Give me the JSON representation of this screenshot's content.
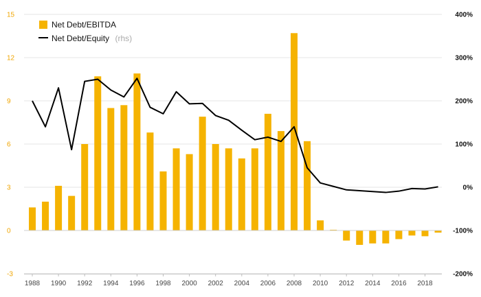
{
  "chart_data": {
    "type": "bar",
    "x": [
      1988,
      1989,
      1990,
      1991,
      1992,
      1993,
      1994,
      1995,
      1996,
      1997,
      1998,
      1999,
      2000,
      2001,
      2002,
      2003,
      2004,
      2005,
      2006,
      2007,
      2008,
      2009,
      2010,
      2011,
      2012,
      2013,
      2014,
      2015,
      2016,
      2017,
      2018,
      2019
    ],
    "series": [
      {
        "name": "Net Debt/EBITDA",
        "type": "bar",
        "axis": "left",
        "color": "#f5b301",
        "values": [
          1.6,
          2.0,
          3.1,
          2.4,
          6.0,
          10.7,
          8.5,
          8.7,
          10.9,
          6.8,
          4.1,
          5.7,
          5.3,
          7.9,
          6.0,
          5.7,
          5.0,
          5.7,
          8.1,
          6.9,
          13.7,
          6.2,
          0.7,
          0.05,
          -0.7,
          -1.0,
          -0.9,
          -0.9,
          -0.6,
          -0.35,
          -0.4,
          -0.15
        ]
      },
      {
        "name": "Net Debt/Equity",
        "legend_note": "(rhs)",
        "type": "line",
        "axis": "right",
        "color": "#000000",
        "values": [
          200,
          140,
          230,
          87,
          245,
          250,
          225,
          209,
          252,
          185,
          170,
          221,
          193,
          194,
          166,
          155,
          132,
          110,
          116,
          106,
          140,
          45,
          10,
          2,
          -6,
          -8,
          -10,
          -12,
          -9,
          -3,
          -4,
          1
        ]
      }
    ],
    "y_left": {
      "min": -3,
      "max": 15,
      "ticks": [
        -3,
        0,
        3,
        6,
        9,
        12,
        15
      ],
      "tick_labels": [
        "-3",
        "0",
        "3",
        "6",
        "9",
        "12",
        "15"
      ],
      "color": "#f0a500"
    },
    "y_right": {
      "min": -200,
      "max": 400,
      "ticks": [
        -200,
        -100,
        0,
        100,
        200,
        300,
        400
      ],
      "tick_labels": [
        "-200%",
        "-100%",
        "0%",
        "100%",
        "200%",
        "300%",
        "400%"
      ]
    },
    "x_tick_labels": [
      "1988",
      "1990",
      "1992",
      "1994",
      "1996",
      "1998",
      "2000",
      "2002",
      "2004",
      "2006",
      "2008",
      "2010",
      "2012",
      "2014",
      "2016",
      "2018"
    ],
    "grid": "horizontal",
    "legend_position": "top-left",
    "title": "",
    "xlabel": "",
    "ylabel": ""
  }
}
